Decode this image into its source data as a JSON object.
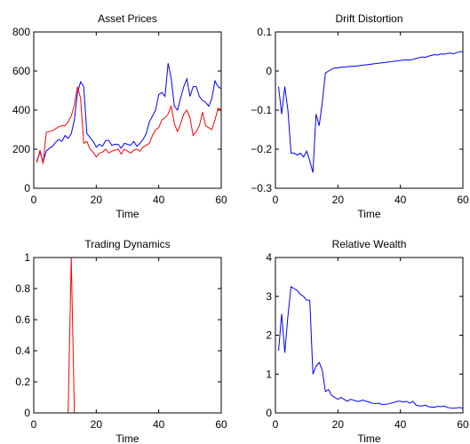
{
  "chart_data": [
    {
      "type": "line",
      "title": "Asset Prices",
      "xlabel": "Time",
      "ylabel": "",
      "xlim": [
        0,
        60
      ],
      "ylim": [
        0,
        800
      ],
      "xticks": [
        0,
        20,
        40,
        60
      ],
      "yticks": [
        0,
        200,
        400,
        600,
        800
      ],
      "ytick_labels": [
        "0",
        "200",
        "400",
        "600",
        "800"
      ],
      "grid": false,
      "series": [
        {
          "color": "#0000ff",
          "x": [
            1,
            2,
            3,
            4,
            5,
            6,
            7,
            8,
            9,
            10,
            11,
            12,
            13,
            14,
            15,
            16,
            17,
            18,
            19,
            20,
            21,
            22,
            23,
            24,
            25,
            26,
            27,
            28,
            29,
            30,
            31,
            32,
            33,
            34,
            35,
            36,
            37,
            38,
            39,
            40,
            41,
            42,
            43,
            44,
            45,
            46,
            47,
            48,
            49,
            50,
            51,
            52,
            53,
            54,
            55,
            56,
            57,
            58,
            59,
            60
          ],
          "y": [
            140,
            185,
            135,
            190,
            205,
            215,
            235,
            250,
            240,
            270,
            255,
            280,
            350,
            490,
            545,
            520,
            280,
            260,
            240,
            210,
            225,
            215,
            245,
            245,
            220,
            225,
            225,
            205,
            230,
            225,
            220,
            240,
            215,
            230,
            250,
            280,
            340,
            370,
            400,
            480,
            490,
            470,
            640,
            560,
            420,
            400,
            460,
            520,
            560,
            470,
            520,
            520,
            470,
            450,
            440,
            420,
            460,
            550,
            520,
            510
          ]
        },
        {
          "color": "#ff0000",
          "x": [
            1,
            2,
            3,
            4,
            5,
            6,
            7,
            8,
            9,
            10,
            11,
            12,
            13,
            14,
            15,
            16,
            17,
            18,
            19,
            20,
            21,
            22,
            23,
            24,
            25,
            26,
            27,
            28,
            29,
            30,
            31,
            32,
            33,
            34,
            35,
            36,
            37,
            38,
            39,
            40,
            41,
            42,
            43,
            44,
            45,
            46,
            47,
            48,
            49,
            50,
            51,
            52,
            53,
            54,
            55,
            56,
            57,
            58,
            59,
            60
          ],
          "y": [
            130,
            195,
            125,
            285,
            290,
            295,
            305,
            315,
            320,
            320,
            340,
            370,
            425,
            520,
            460,
            230,
            240,
            200,
            185,
            160,
            180,
            185,
            200,
            180,
            190,
            195,
            200,
            175,
            200,
            190,
            180,
            195,
            200,
            190,
            210,
            220,
            230,
            270,
            300,
            310,
            350,
            360,
            380,
            420,
            330,
            290,
            330,
            380,
            400,
            360,
            270,
            290,
            320,
            390,
            320,
            310,
            300,
            350,
            410,
            400
          ]
        }
      ]
    },
    {
      "type": "line",
      "title": "Drift Distortion",
      "xlabel": "Time",
      "ylabel": "",
      "xlim": [
        0,
        60
      ],
      "ylim": [
        -0.3,
        0.1
      ],
      "xticks": [
        0,
        20,
        40,
        60
      ],
      "yticks": [
        -0.3,
        -0.2,
        -0.1,
        0,
        0.1
      ],
      "ytick_labels": [
        "−0.3",
        "−0.2",
        "−0.1",
        "0",
        "0.1"
      ],
      "grid": false,
      "series": [
        {
          "color": "#0000ff",
          "x": [
            1,
            2,
            3,
            4,
            5,
            6,
            7,
            8,
            9,
            10,
            11,
            12,
            13,
            14,
            15,
            16,
            17,
            18,
            19,
            20,
            21,
            22,
            23,
            24,
            25,
            26,
            27,
            28,
            29,
            30,
            31,
            32,
            33,
            34,
            35,
            36,
            37,
            38,
            39,
            40,
            41,
            42,
            43,
            44,
            45,
            46,
            47,
            48,
            49,
            50,
            51,
            52,
            53,
            54,
            55,
            56,
            57,
            58,
            59,
            60
          ],
          "y": [
            -0.04,
            -0.11,
            -0.04,
            -0.1,
            -0.21,
            -0.21,
            -0.215,
            -0.21,
            -0.22,
            -0.205,
            -0.23,
            -0.26,
            -0.11,
            -0.14,
            -0.08,
            -0.005,
            0.0,
            0.005,
            0.008,
            0.008,
            0.01,
            0.01,
            0.011,
            0.012,
            0.012,
            0.013,
            0.014,
            0.015,
            0.016,
            0.017,
            0.018,
            0.019,
            0.02,
            0.021,
            0.022,
            0.023,
            0.024,
            0.025,
            0.026,
            0.027,
            0.028,
            0.029,
            0.028,
            0.03,
            0.032,
            0.034,
            0.036,
            0.035,
            0.038,
            0.04,
            0.042,
            0.041,
            0.044,
            0.043,
            0.045,
            0.046,
            0.044,
            0.047,
            0.049,
            0.05
          ]
        }
      ]
    },
    {
      "type": "line",
      "title": "Trading Dynamics",
      "xlabel": "Time",
      "ylabel": "",
      "xlim": [
        0,
        60
      ],
      "ylim": [
        0,
        1
      ],
      "xticks": [
        0,
        20,
        40,
        60
      ],
      "yticks": [
        0,
        0.2,
        0.4,
        0.6,
        0.8,
        1
      ],
      "ytick_labels": [
        "0",
        "0.2",
        "0.4",
        "0.6",
        "0.8",
        "1"
      ],
      "grid": false,
      "series": [
        {
          "color": "#ff0000",
          "x": [
            1,
            11,
            12,
            13,
            60
          ],
          "y": [
            0,
            0,
            1,
            0,
            0
          ]
        }
      ]
    },
    {
      "type": "line",
      "title": "Relative Wealth",
      "xlabel": "Time",
      "ylabel": "",
      "xlim": [
        0,
        60
      ],
      "ylim": [
        0,
        4
      ],
      "xticks": [
        0,
        20,
        40,
        60
      ],
      "yticks": [
        0,
        1,
        2,
        3,
        4
      ],
      "ytick_labels": [
        "0",
        "1",
        "2",
        "3",
        "4"
      ],
      "grid": false,
      "series": [
        {
          "color": "#0000ff",
          "x": [
            1,
            2,
            3,
            4,
            5,
            6,
            7,
            8,
            9,
            10,
            11,
            12,
            13,
            14,
            15,
            16,
            17,
            18,
            19,
            20,
            21,
            22,
            23,
            24,
            25,
            26,
            27,
            28,
            29,
            30,
            31,
            32,
            33,
            34,
            35,
            36,
            37,
            38,
            39,
            40,
            41,
            42,
            43,
            44,
            45,
            46,
            47,
            48,
            49,
            50,
            51,
            52,
            53,
            54,
            55,
            56,
            57,
            58,
            59,
            60
          ],
          "y": [
            1.6,
            2.55,
            1.55,
            2.5,
            3.25,
            3.2,
            3.15,
            3.05,
            3.0,
            2.9,
            2.9,
            1.0,
            1.2,
            1.3,
            1.1,
            0.55,
            0.6,
            0.45,
            0.4,
            0.35,
            0.4,
            0.35,
            0.3,
            0.35,
            0.33,
            0.3,
            0.3,
            0.33,
            0.3,
            0.28,
            0.25,
            0.24,
            0.25,
            0.22,
            0.22,
            0.23,
            0.25,
            0.27,
            0.3,
            0.3,
            0.28,
            0.3,
            0.25,
            0.3,
            0.2,
            0.18,
            0.18,
            0.2,
            0.16,
            0.15,
            0.15,
            0.17,
            0.16,
            0.18,
            0.14,
            0.13,
            0.12,
            0.13,
            0.14,
            0.12
          ]
        }
      ]
    }
  ]
}
